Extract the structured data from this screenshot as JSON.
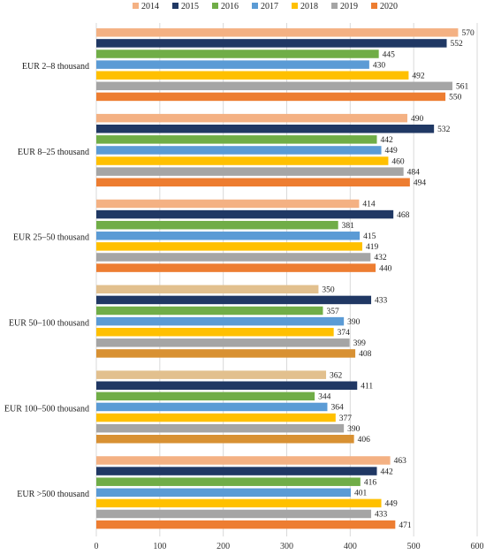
{
  "chart_data": {
    "type": "bar",
    "orientation": "horizontal",
    "categories": [
      "EUR 2–8 thousand",
      "EUR 8–25 thousand",
      "EUR 25–50 thousand",
      "EUR 50–100 thousand",
      "EUR 100–500 thousand",
      "EUR >500 thousand"
    ],
    "series": [
      {
        "name": "2014",
        "color": "#F4B183",
        "values": [
          570,
          490,
          414,
          350,
          362,
          463
        ]
      },
      {
        "name": "2015",
        "color": "#203864",
        "values": [
          552,
          532,
          468,
          433,
          411,
          442
        ]
      },
      {
        "name": "2016",
        "color": "#70AD47",
        "values": [
          445,
          442,
          381,
          357,
          344,
          416
        ]
      },
      {
        "name": "2017",
        "color": "#5B9BD5",
        "values": [
          430,
          449,
          415,
          390,
          364,
          401
        ]
      },
      {
        "name": "2018",
        "color": "#FFC000",
        "values": [
          492,
          460,
          419,
          374,
          377,
          449
        ]
      },
      {
        "name": "2019",
        "color": "#A5A5A5",
        "values": [
          561,
          484,
          432,
          399,
          390,
          433
        ]
      },
      {
        "name": "2020",
        "color": "#ED7D31",
        "values": [
          550,
          494,
          440,
          408,
          406,
          471
        ]
      }
    ],
    "category_colors_override": {
      "3": {
        "2014": "#E2C08E",
        "2020": "#D89133"
      },
      "4": {
        "2014": "#E2C08E",
        "2020": "#D89133"
      }
    },
    "xlim": [
      0,
      600
    ],
    "xticks": [
      0,
      100,
      200,
      300,
      400,
      500,
      600
    ],
    "grid": true,
    "legend_position": "top",
    "title": "",
    "xlabel": "",
    "ylabel": ""
  }
}
